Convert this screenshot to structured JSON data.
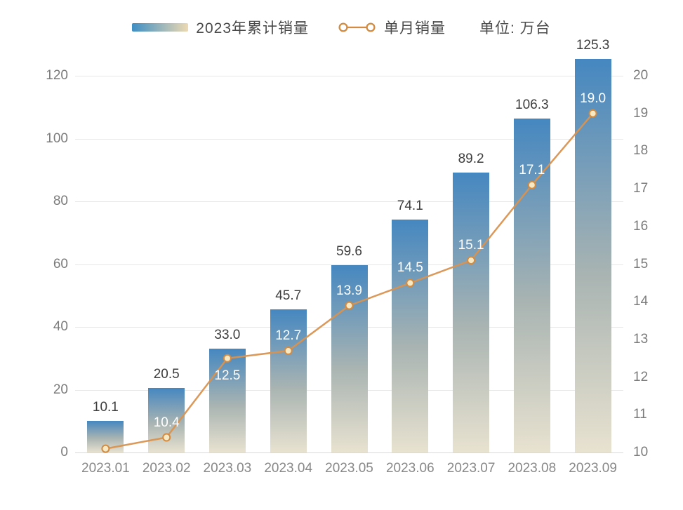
{
  "legend": {
    "bar_series_label": "2023年累计销量",
    "line_series_label": "单月销量",
    "unit_label": "单位: 万台"
  },
  "chart_data": {
    "type": "combo",
    "title": "",
    "categories": [
      "2023.01",
      "2023.02",
      "2023.03",
      "2023.04",
      "2023.05",
      "2023.06",
      "2023.07",
      "2023.08",
      "2023.09"
    ],
    "series": [
      {
        "name": "2023年累计销量",
        "type": "bar",
        "yaxis": "left",
        "values": [
          10.1,
          20.5,
          33.0,
          45.7,
          59.6,
          74.1,
          89.2,
          106.3,
          125.3
        ],
        "labels": [
          "10.1",
          "20.5",
          "33.0",
          "45.7",
          "59.6",
          "74.1",
          "89.2",
          "106.3",
          "125.3"
        ]
      },
      {
        "name": "单月销量",
        "type": "line",
        "yaxis": "right",
        "values": [
          10.1,
          10.4,
          12.5,
          12.7,
          13.9,
          14.5,
          15.1,
          17.1,
          19.0
        ],
        "labels": [
          "",
          "10.4",
          "12.5",
          "12.7",
          "13.9",
          "14.5",
          "15.1",
          "17.1",
          "19.0"
        ]
      }
    ],
    "left_axis": {
      "min": 0,
      "max": 120,
      "ticks": [
        0,
        20,
        40,
        60,
        80,
        100,
        120
      ]
    },
    "right_axis": {
      "min": 10,
      "max": 20,
      "ticks": [
        10,
        11,
        12,
        13,
        14,
        15,
        16,
        17,
        18,
        19,
        20
      ]
    },
    "unit": "万台",
    "grid": true,
    "legend_position": "top"
  },
  "colors": {
    "bar_gradient_top": "#4587C0",
    "bar_gradient_mid": "#A9B4B2",
    "bar_gradient_bottom": "#E8E2D0",
    "legend_swatch_from": "#3E8FC4",
    "legend_swatch_to": "#EDD9B2",
    "line": "#D9924F",
    "marker_fill": "#F7E9C4",
    "marker_stroke": "#D38B42",
    "bar_label_text": "#3D3D3D",
    "inner_label_text": "#FFFFFF",
    "axis_text": "#7B7B7B",
    "gridline": "#E7E7E7",
    "legend_text": "#4A4A4A"
  }
}
